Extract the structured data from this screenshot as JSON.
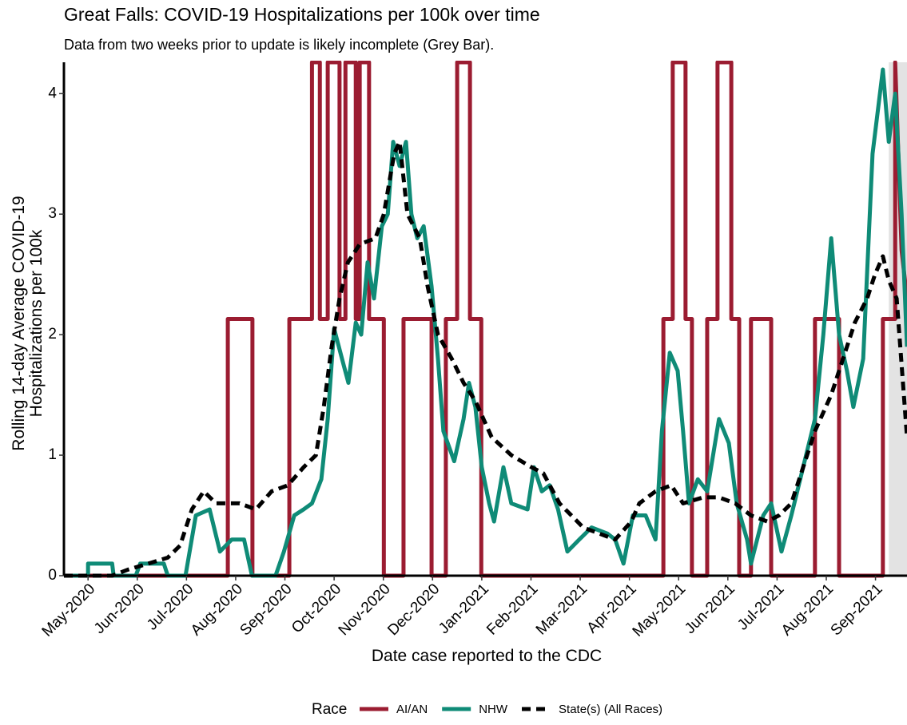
{
  "chart_data": {
    "type": "line",
    "title": "Great Falls: COVID-19 Hospitalizations per 100k over time",
    "subtitle": "Data from two weeks prior to update is likely incomplete (Grey Bar).",
    "x_label": "Date case reported to the CDC",
    "y_label": [
      "Rolling 14-day Average COVID-19",
      "Hospitalizations per 100k"
    ],
    "legend_title": "Race",
    "legend_position": "bottom",
    "grid": false,
    "xlim": [
      -0.49,
      16.64
    ],
    "ylim": [
      0,
      4.26
    ],
    "yticks": [
      0,
      1,
      2,
      3,
      4
    ],
    "xticks": [
      {
        "value": 0,
        "label": "May-2020"
      },
      {
        "value": 1,
        "label": "Jun-2020"
      },
      {
        "value": 2,
        "label": "Jul-2020"
      },
      {
        "value": 3,
        "label": "Aug-2020"
      },
      {
        "value": 4,
        "label": "Sep-2020"
      },
      {
        "value": 5,
        "label": "Oct-2020"
      },
      {
        "value": 6,
        "label": "Nov-2020"
      },
      {
        "value": 7,
        "label": "Dec-2020"
      },
      {
        "value": 8,
        "label": "Jan-2021"
      },
      {
        "value": 9,
        "label": "Feb-2021"
      },
      {
        "value": 10,
        "label": "Mar-2021"
      },
      {
        "value": 11,
        "label": "Apr-2021"
      },
      {
        "value": 12,
        "label": "May-2021"
      },
      {
        "value": 13,
        "label": "Jun-2021"
      },
      {
        "value": 14,
        "label": "Jul-2021"
      },
      {
        "value": 15,
        "label": "Aug-2021"
      },
      {
        "value": 16,
        "label": "Sep-2021"
      }
    ],
    "shaded_region": [
      16.27,
      16.64
    ],
    "shaded_color": "#e3e3e3",
    "series": [
      {
        "name": "AI/AN",
        "color": "#9b1c31",
        "dashed": false,
        "x": [
          -0.49,
          2.84,
          2.84,
          3.34,
          3.34,
          4.09,
          4.09,
          4.55,
          4.55,
          4.71,
          4.71,
          4.87,
          4.87,
          5.11,
          5.11,
          5.23,
          5.23,
          5.44,
          5.44,
          5.52,
          5.52,
          5.71,
          5.71,
          6.01,
          6.01,
          6.41,
          6.41,
          6.98,
          6.98,
          7.27,
          7.27,
          7.5,
          7.5,
          7.76,
          7.76,
          7.99,
          7.99,
          11.69,
          11.69,
          11.88,
          11.88,
          12.14,
          12.14,
          12.27,
          12.27,
          12.58,
          12.58,
          12.79,
          12.79,
          13.07,
          13.07,
          13.23,
          13.23,
          13.47,
          13.47,
          13.88,
          13.88,
          14.77,
          14.77,
          15.26,
          15.26,
          16.15,
          16.15,
          16.4,
          16.4,
          16.53,
          16.64
        ],
        "values": [
          0,
          0,
          2.13,
          2.13,
          0,
          0,
          2.13,
          2.13,
          4.26,
          4.26,
          2.13,
          2.13,
          4.26,
          4.26,
          2.13,
          2.13,
          4.26,
          4.26,
          2.13,
          2.13,
          4.26,
          4.26,
          2.13,
          2.13,
          0,
          0,
          2.13,
          2.13,
          0,
          0,
          2.13,
          2.13,
          4.26,
          4.26,
          2.13,
          2.13,
          0,
          0,
          2.13,
          2.13,
          4.26,
          4.26,
          2.13,
          2.13,
          0,
          0,
          2.13,
          2.13,
          4.26,
          4.26,
          2.13,
          2.13,
          0,
          0,
          2.13,
          2.13,
          0,
          0,
          2.13,
          2.13,
          0,
          0,
          2.13,
          2.13,
          4.26,
          2.7,
          2.3
        ]
      },
      {
        "name": "NHW",
        "color": "#0f8b77",
        "dashed": false,
        "x": [
          -0.49,
          0,
          0,
          0.49,
          0.52,
          0.97,
          1.06,
          1.54,
          1.62,
          1.98,
          2.19,
          2.47,
          2.56,
          2.68,
          2.92,
          3.17,
          3.33,
          3.81,
          3.98,
          4.19,
          4.38,
          4.55,
          4.74,
          4.87,
          5.0,
          5.16,
          5.29,
          5.44,
          5.55,
          5.68,
          5.81,
          5.97,
          6.09,
          6.2,
          6.33,
          6.46,
          6.57,
          6.69,
          6.82,
          6.98,
          7.11,
          7.22,
          7.44,
          7.63,
          7.74,
          7.87,
          8.0,
          8.15,
          8.25,
          8.44,
          8.6,
          8.93,
          9.06,
          9.22,
          9.38,
          9.55,
          9.74,
          9.98,
          10.23,
          10.55,
          10.71,
          10.88,
          11.07,
          11.33,
          11.53,
          11.66,
          11.82,
          11.98,
          12.09,
          12.21,
          12.39,
          12.58,
          12.82,
          13.02,
          13.18,
          13.39,
          13.47,
          13.72,
          13.88,
          14.09,
          14.29,
          14.53,
          14.77,
          14.94,
          15.1,
          15.26,
          15.42,
          15.55,
          15.75,
          15.94,
          16.15,
          16.27,
          16.4,
          16.53,
          16.64
        ],
        "values": [
          0,
          0,
          0.1,
          0.1,
          0,
          0,
          0.1,
          0.1,
          0,
          0,
          0.5,
          0.55,
          0.4,
          0.2,
          0.3,
          0.3,
          0,
          0,
          0.2,
          0.5,
          0.55,
          0.6,
          0.8,
          1.3,
          2.05,
          1.8,
          1.6,
          2.1,
          2.0,
          2.6,
          2.3,
          2.9,
          3.0,
          3.6,
          3.4,
          3.6,
          3.0,
          2.8,
          2.9,
          2.4,
          1.8,
          1.2,
          0.95,
          1.3,
          1.6,
          1.4,
          0.9,
          0.6,
          0.45,
          0.9,
          0.6,
          0.55,
          0.9,
          0.7,
          0.75,
          0.55,
          0.2,
          0.3,
          0.4,
          0.35,
          0.3,
          0.1,
          0.5,
          0.5,
          0.3,
          1.2,
          1.85,
          1.7,
          1.2,
          0.6,
          0.8,
          0.7,
          1.3,
          1.1,
          0.6,
          0.3,
          0.1,
          0.5,
          0.6,
          0.2,
          0.5,
          0.9,
          1.3,
          2.0,
          2.8,
          2.0,
          1.7,
          1.4,
          1.8,
          3.5,
          4.2,
          3.6,
          4.0,
          3.0,
          1.9
        ]
      },
      {
        "name": "State(s) (All Races)",
        "color": "#000000",
        "dashed": true,
        "x": [
          -0.49,
          0.49,
          0.81,
          1.22,
          1.62,
          1.87,
          2.11,
          2.35,
          2.6,
          3.08,
          3.41,
          3.73,
          4.06,
          4.38,
          4.63,
          4.79,
          4.95,
          5.11,
          5.28,
          5.52,
          5.84,
          6.01,
          6.22,
          6.33,
          6.49,
          6.74,
          6.9,
          7.11,
          7.39,
          7.63,
          7.87,
          8.2,
          8.6,
          9.01,
          9.25,
          9.58,
          10.06,
          10.71,
          11.04,
          11.2,
          11.53,
          11.85,
          12.09,
          12.5,
          12.82,
          13.15,
          13.47,
          13.8,
          14.04,
          14.29,
          14.53,
          14.77,
          15.1,
          15.34,
          15.58,
          15.83,
          15.99,
          16.15,
          16.27,
          16.43,
          16.64
        ],
        "values": [
          0,
          0,
          0.05,
          0.1,
          0.15,
          0.25,
          0.55,
          0.7,
          0.6,
          0.6,
          0.55,
          0.7,
          0.75,
          0.9,
          1.0,
          1.4,
          1.9,
          2.3,
          2.6,
          2.75,
          2.8,
          3.0,
          3.5,
          3.6,
          3.0,
          2.8,
          2.4,
          2.0,
          1.8,
          1.6,
          1.45,
          1.15,
          1.0,
          0.9,
          0.85,
          0.6,
          0.4,
          0.3,
          0.45,
          0.6,
          0.7,
          0.75,
          0.6,
          0.65,
          0.65,
          0.6,
          0.5,
          0.45,
          0.5,
          0.6,
          0.9,
          1.2,
          1.5,
          1.8,
          2.1,
          2.3,
          2.5,
          2.65,
          2.45,
          2.3,
          1.15
        ]
      }
    ]
  }
}
